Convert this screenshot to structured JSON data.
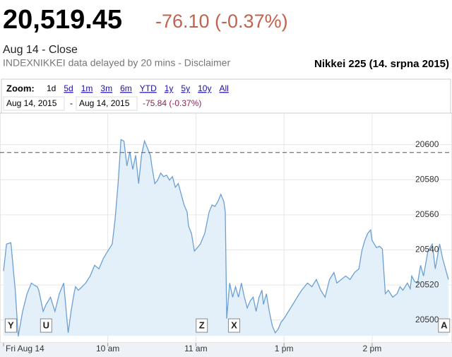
{
  "header": {
    "price": "20,519.45",
    "change": "-76.10 (-0.37%)",
    "status": "Aug 14 - Close",
    "note": "INDEXNIKKEI data delayed by 20 mins - Disclaimer"
  },
  "zoom": {
    "label": "Zoom:",
    "options": [
      "1d",
      "5d",
      "1m",
      "3m",
      "6m",
      "YTD",
      "1y",
      "5y",
      "10y",
      "All"
    ],
    "selected": 0
  },
  "range": {
    "start": "Aug 14, 2015",
    "separator": "-",
    "end": "Aug 14, 2015",
    "change": "-75.84 (-0.37%)"
  },
  "chart_data": {
    "type": "area",
    "title": "Nikkei 225 (14. srpna 2015)",
    "x": [
      -11,
      -9,
      -6,
      -3,
      -1,
      2,
      5,
      8,
      10,
      12,
      13,
      16,
      18,
      21,
      24,
      27,
      30,
      33,
      35,
      37,
      38,
      40,
      42,
      45,
      48,
      51,
      54,
      57,
      60,
      63,
      65,
      67,
      69,
      71,
      73,
      75,
      77,
      79,
      81,
      83,
      85,
      87,
      89,
      90,
      92,
      94,
      96,
      98,
      100,
      102,
      104,
      106,
      108,
      110,
      112,
      114,
      115,
      117,
      119,
      121,
      123,
      126,
      129,
      131,
      133,
      135,
      137,
      139,
      140,
      141,
      143,
      145,
      147,
      149,
      151,
      153,
      155,
      157,
      159,
      161,
      163,
      165,
      166,
      168,
      170,
      172,
      174,
      176,
      178,
      180,
      183,
      186,
      189,
      192,
      196,
      199,
      202,
      205,
      208,
      211,
      214,
      216,
      219,
      222,
      225,
      228,
      231,
      233,
      235,
      237,
      239,
      240,
      243,
      245,
      247,
      249,
      251,
      254,
      257,
      259,
      261,
      264,
      266,
      267,
      269,
      271,
      273,
      275,
      278,
      281,
      283,
      286,
      288,
      290,
      292
    ],
    "values": [
      20527.9,
      20543.3,
      20544.1,
      20517.0,
      20490.7,
      20504.9,
      20515.0,
      20521.1,
      20519.8,
      20519.0,
      20517.0,
      20504.9,
      20508.9,
      20513.0,
      20504.9,
      20515.0,
      20521.1,
      20492.7,
      20504.9,
      20515.0,
      20519.0,
      20517.0,
      20518.6,
      20521.1,
      20525.1,
      20531.2,
      20529.2,
      20535.2,
      20539.3,
      20543.3,
      20557.5,
      20577.8,
      20602.9,
      20602.1,
      20587.9,
      20596.0,
      20585.9,
      20594.0,
      20577.8,
      20594.0,
      20602.1,
      20598.0,
      20594.0,
      20587.9,
      20577.8,
      20579.8,
      20583.8,
      20581.8,
      20582.6,
      20579.8,
      20581.8,
      20575.7,
      20577.8,
      20571.7,
      20565.6,
      20561.6,
      20553.5,
      20549.4,
      20539.3,
      20541.3,
      20543.3,
      20549.4,
      20561.6,
      20565.6,
      20564.8,
      20567.6,
      20571.7,
      20567.6,
      20561.6,
      20500.8,
      20521.1,
      20513.0,
      20519.0,
      20513.0,
      20521.1,
      20513.0,
      20506.9,
      20510.9,
      20513.0,
      20504.9,
      20513.0,
      20517.0,
      20508.9,
      20515.0,
      20504.9,
      20496.8,
      20492.7,
      20494.7,
      20498.8,
      20500.8,
      20504.9,
      20508.9,
      20513.0,
      20517.0,
      20521.1,
      20519.0,
      20523.1,
      20517.0,
      20513.0,
      20523.1,
      20527.1,
      20521.1,
      20523.1,
      20525.1,
      20523.1,
      20527.1,
      20529.2,
      20539.3,
      20545.4,
      20549.4,
      20551.4,
      20545.4,
      20541.3,
      20542.1,
      20540.5,
      20515.0,
      20517.0,
      20513.0,
      20515.0,
      20519.0,
      20517.0,
      20521.1,
      20517.8,
      20525.1,
      20521.9,
      20521.1,
      20531.2,
      20525.1,
      20539.3,
      20543.3,
      20529.2,
      20543.3,
      20535.2,
      20529.2,
      20523.1
    ],
    "color": "#6c9fd3",
    "fill": "#e4f0f9",
    "xlim": [
      -11,
      292
    ],
    "ylim": [
      20491,
      20616
    ],
    "xticks": [
      {
        "value": -11,
        "label": "Fri Aug 14"
      },
      {
        "value": 60,
        "label": "10 am"
      },
      {
        "value": 120,
        "label": "11 am"
      },
      {
        "value": 180,
        "label": "1 pm"
      },
      {
        "value": 240,
        "label": "2 pm"
      }
    ],
    "yticks": [
      20500,
      20520,
      20540,
      20560,
      20580,
      20600
    ],
    "grid": true,
    "reference_line": 20595.55,
    "flags": [
      {
        "x": -6,
        "label": "Y"
      },
      {
        "x": 18,
        "label": "U"
      },
      {
        "x": 124,
        "label": "Z"
      },
      {
        "x": 146,
        "label": "X"
      },
      {
        "x": 289,
        "label": "A"
      }
    ]
  }
}
